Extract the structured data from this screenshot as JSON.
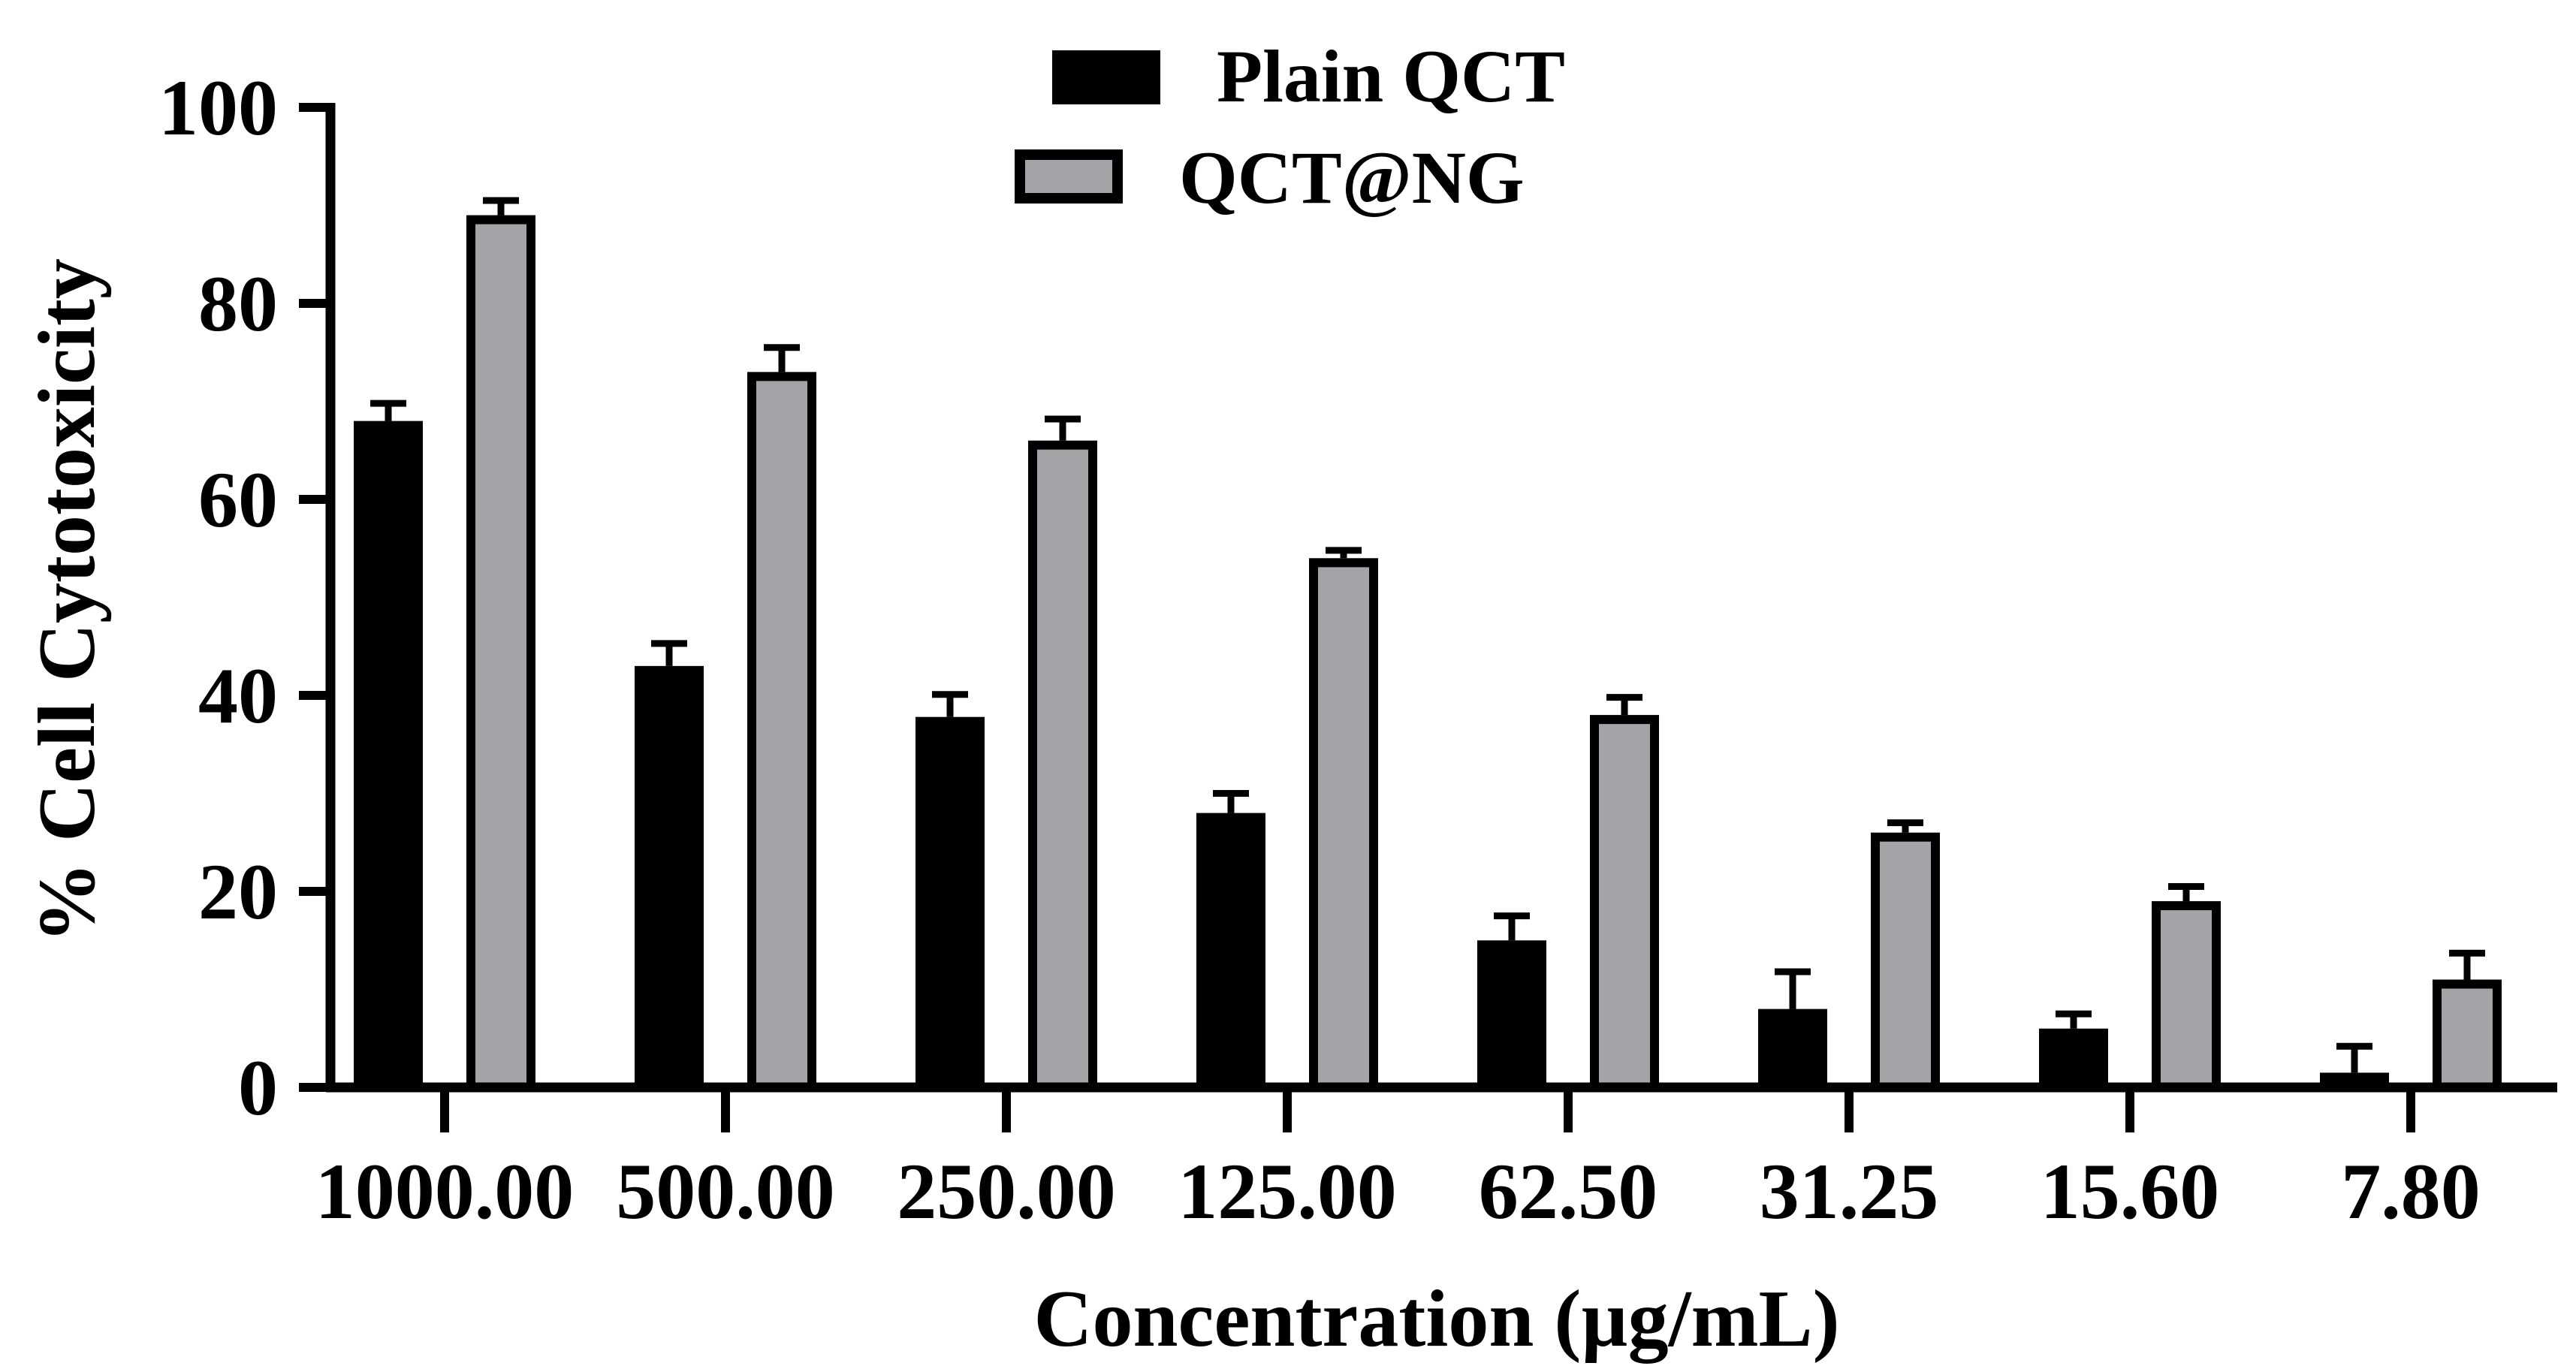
{
  "chart_data": {
    "type": "bar",
    "title": "",
    "xlabel": "Concentration (µg/mL)",
    "ylabel": "% Cell Cytotoxicity",
    "ylim": [
      0,
      100
    ],
    "yticks": [
      "0",
      "20",
      "40",
      "60",
      "80",
      "100"
    ],
    "categories": [
      "1000.00",
      "500.00",
      "250.00",
      "125.00",
      "62.50",
      "31.25",
      "15.60",
      "7.80"
    ],
    "series": [
      {
        "name": "Plain QCT",
        "color": "#000000",
        "values": [
          68.0,
          43.0,
          37.8,
          28.0,
          15.0,
          8.0,
          6.0,
          1.5
        ],
        "errors": [
          1.8,
          2.3,
          2.3,
          2.0,
          2.5,
          3.8,
          1.5,
          2.7
        ]
      },
      {
        "name": "QCT@NG",
        "color": "#a4a4a8",
        "values": [
          89.0,
          73.0,
          66.0,
          54.0,
          38.0,
          26.0,
          19.0,
          11.0
        ],
        "errors": [
          1.5,
          2.5,
          2.2,
          0.8,
          1.8,
          1.0,
          1.5,
          2.7
        ]
      }
    ],
    "legend": {
      "position": "top-center"
    }
  }
}
